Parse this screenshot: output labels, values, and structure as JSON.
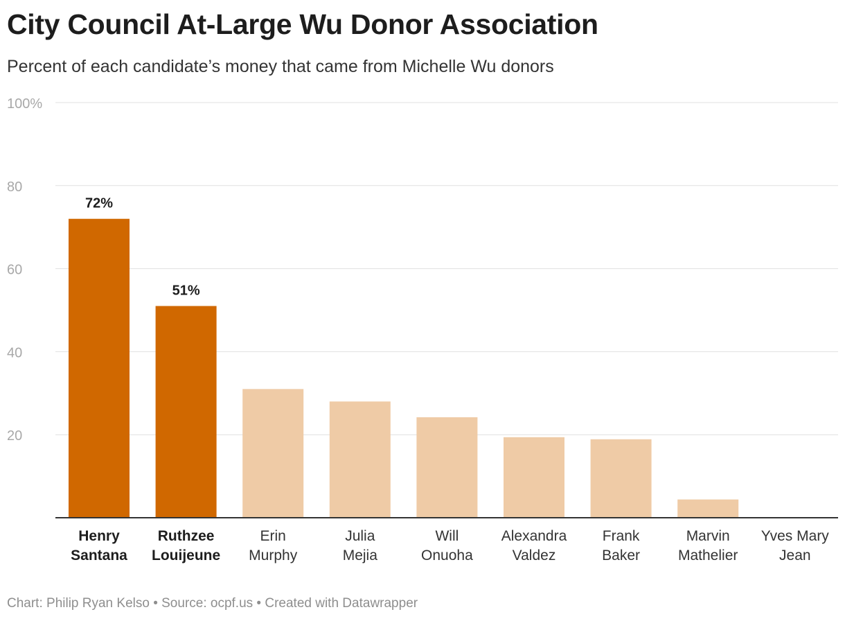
{
  "chart_data": {
    "type": "bar",
    "title": "City Council At-Large Wu Donor Association",
    "subtitle": "Percent of each candidate’s money that came from Michelle Wu donors",
    "categories": [
      [
        "Henry",
        "Santana"
      ],
      [
        "Ruthzee",
        "Louijeune"
      ],
      [
        "Erin",
        "Murphy"
      ],
      [
        "Julia",
        "Mejia"
      ],
      [
        "Will",
        "Onuoha"
      ],
      [
        "Alexandra",
        "Valdez"
      ],
      [
        "Frank",
        "Baker"
      ],
      [
        "Marvin",
        "Mathelier"
      ],
      [
        "Yves Mary",
        "Jean"
      ]
    ],
    "values": [
      72,
      51,
      31,
      28,
      24.2,
      19.4,
      18.9,
      4.4,
      0
    ],
    "highlighted": [
      true,
      true,
      false,
      false,
      false,
      false,
      false,
      false,
      false
    ],
    "data_labels": [
      "72%",
      "51%",
      "",
      "",
      "",
      "",
      "",
      "",
      ""
    ],
    "ylim": [
      0,
      100
    ],
    "y_ticks": [
      {
        "value": 20,
        "label": "20"
      },
      {
        "value": 40,
        "label": "40"
      },
      {
        "value": 60,
        "label": "60"
      },
      {
        "value": 80,
        "label": "80"
      },
      {
        "value": 100,
        "label": "100%"
      }
    ],
    "grid": true,
    "colors": {
      "highlight": "#d06800",
      "base": "#efcba6",
      "grid": "#e0e0e0",
      "axis": "#333333"
    }
  },
  "footer": {
    "credit": "Chart: Philip Ryan Kelso • Source: ocpf.us • Created with Datawrapper"
  }
}
